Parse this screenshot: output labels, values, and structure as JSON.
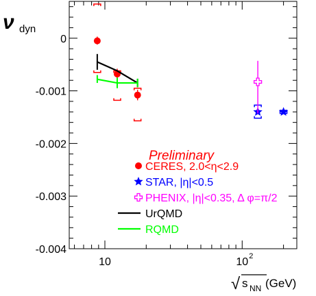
{
  "chart_data": {
    "type": "scatter",
    "ylabel_main": "ν",
    "ylabel_sub": "dyn",
    "xlabel_prefix": "√",
    "xlabel_sqrt": "s",
    "xlabel_sub": "NN",
    "xlabel_unit": " (GeV)",
    "xscale": "log",
    "xlim": [
      5.5,
      250
    ],
    "ylim": [
      -0.004,
      0.0007
    ],
    "y_ticks": [
      {
        "value": 0,
        "label": "0"
      },
      {
        "value": -0.001,
        "label": "-0.001"
      },
      {
        "value": -0.002,
        "label": "-0.002"
      },
      {
        "value": -0.003,
        "label": "-0.003"
      },
      {
        "value": -0.004,
        "label": "-0.004"
      }
    ],
    "x_ticks": [
      {
        "value": 10,
        "label": "10"
      },
      {
        "value": 100,
        "label": "10",
        "exponent": "2"
      }
    ],
    "annotation": "Preliminary",
    "legend": [
      {
        "label": "CERES, 2.0<η<2.9",
        "color": "#ff0000",
        "marker": "circle"
      },
      {
        "label": "STAR, |η|<0.5",
        "color": "#0000ff",
        "marker": "star"
      },
      {
        "label": "PHENIX, |η|<0.35, Δ φ=π/2",
        "color": "#ff00ff",
        "marker": "open-cross"
      },
      {
        "label": "UrQMD",
        "color": "#000000",
        "marker": "line"
      },
      {
        "label": "RQMD",
        "color": "#00ff00",
        "marker": "line"
      }
    ],
    "series": [
      {
        "name": "CERES, 2.0<η<2.9",
        "color": "#ff0000",
        "points": [
          {
            "x": 8.8,
            "y": -5e-05,
            "stat_low": -0.00012,
            "stat_high": 3e-05,
            "sys_low": -0.00065,
            "sys_high": 0.00065
          },
          {
            "x": 12.3,
            "y": -0.00068,
            "stat_low": -0.00078,
            "stat_high": -0.00058,
            "sys_low": -0.00118,
            "sys_high": -0.00062
          },
          {
            "x": 17.3,
            "y": -0.00108,
            "stat_low": -0.00118,
            "stat_high": -0.00098,
            "sys_low": -0.00157,
            "sys_high": -0.00095
          }
        ]
      },
      {
        "name": "STAR, |η|<0.5",
        "color": "#0000ff",
        "points": [
          {
            "x": 130,
            "y": -0.0014,
            "stat_low": -0.00143,
            "stat_high": -0.00137,
            "sys_low": -0.00152,
            "sys_high": -0.00127
          },
          {
            "x": 200,
            "y": -0.0014,
            "stat_low": -0.00143,
            "stat_high": -0.00137,
            "sys_low": -0.00143,
            "sys_high": -0.00137
          }
        ]
      },
      {
        "name": "PHENIX, |η|<0.35, Δ φ=π/2",
        "color": "#ff00ff",
        "points": [
          {
            "x": 130,
            "y": -0.00083,
            "stat_low": -0.00143,
            "stat_high": -0.00043
          }
        ]
      },
      {
        "name": "UrQMD",
        "color": "#000000",
        "line": [
          {
            "x": 8.8,
            "y": -0.00045
          },
          {
            "x": 12.3,
            "y": -0.00062
          },
          {
            "x": 17.3,
            "y": -0.00085
          }
        ],
        "errors": [
          {
            "x": 8.8,
            "low": -0.0006,
            "high": -0.0003
          },
          {
            "x": 17.3,
            "low": -0.00093,
            "high": -0.00077
          }
        ]
      },
      {
        "name": "RQMD",
        "color": "#00ff00",
        "line": [
          {
            "x": 8.8,
            "y": -0.00078
          },
          {
            "x": 12.3,
            "y": -0.00085
          },
          {
            "x": 17.3,
            "y": -0.00085
          }
        ],
        "errors": [
          {
            "x": 8.8,
            "low": -0.00085,
            "high": -0.0007
          },
          {
            "x": 12.3,
            "low": -0.00095,
            "high": -0.00075
          },
          {
            "x": 17.3,
            "low": -0.00093,
            "high": -0.00077
          }
        ]
      }
    ]
  }
}
